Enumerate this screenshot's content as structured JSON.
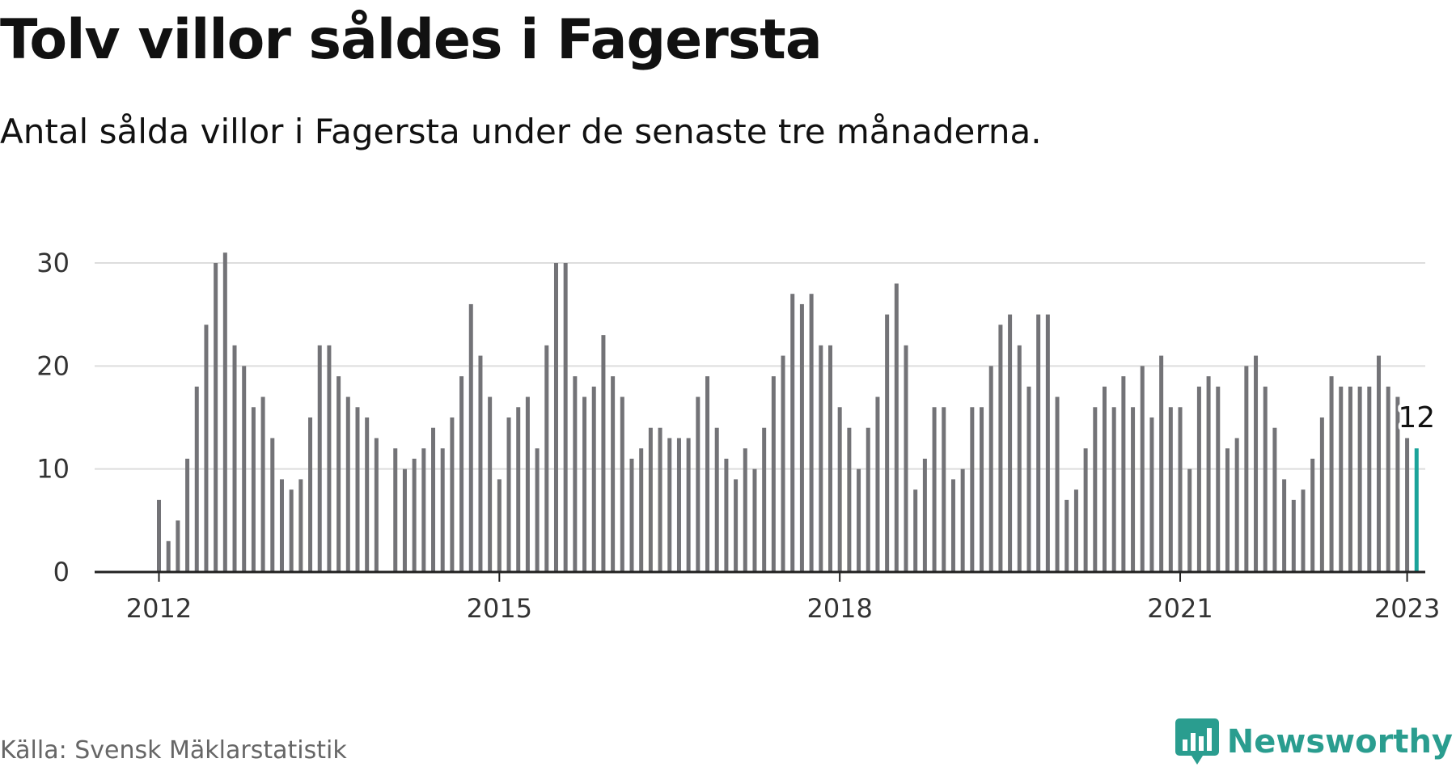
{
  "title": "Tolv villor såldes i Fagersta",
  "subtitle": "Antal sålda villor i Fagersta under de senaste tre månaderna.",
  "source": "Källa: Svensk Mäklarstatistik",
  "brand": "Newsworthy",
  "colors": {
    "bar": "#737377",
    "highlight": "#1aa39a",
    "grid": "#dddddd",
    "axis": "#222222",
    "brand": "#2a9d8f"
  },
  "chart_data": {
    "type": "bar",
    "x_tick_labels": [
      "2012",
      "2015",
      "2018",
      "2021",
      "2023"
    ],
    "y_tick_labels": [
      "0",
      "10",
      "20",
      "30"
    ],
    "ylim": [
      0,
      30
    ],
    "grid": true,
    "start": "2012-01",
    "values": [
      7,
      3,
      5,
      11,
      18,
      24,
      30,
      31,
      22,
      20,
      16,
      17,
      13,
      9,
      8,
      9,
      15,
      22,
      22,
      19,
      17,
      16,
      15,
      13,
      null,
      12,
      10,
      11,
      12,
      14,
      12,
      15,
      19,
      26,
      21,
      17,
      9,
      15,
      16,
      17,
      12,
      22,
      30,
      30,
      19,
      17,
      18,
      23,
      19,
      17,
      11,
      12,
      14,
      14,
      13,
      13,
      13,
      17,
      19,
      14,
      11,
      9,
      12,
      10,
      14,
      19,
      21,
      27,
      26,
      27,
      22,
      22,
      16,
      14,
      10,
      14,
      17,
      25,
      28,
      22,
      8,
      11,
      16,
      16,
      9,
      10,
      16,
      16,
      20,
      24,
      25,
      22,
      18,
      25,
      25,
      17,
      7,
      8,
      12,
      16,
      18,
      16,
      19,
      16,
      20,
      15,
      21,
      16,
      16,
      10,
      18,
      19,
      18,
      12,
      13,
      20,
      21,
      18,
      14,
      9,
      7,
      8,
      11,
      15,
      19,
      18,
      18,
      18,
      18,
      21,
      18,
      17,
      13,
      12
    ],
    "last_value_label": "12"
  }
}
